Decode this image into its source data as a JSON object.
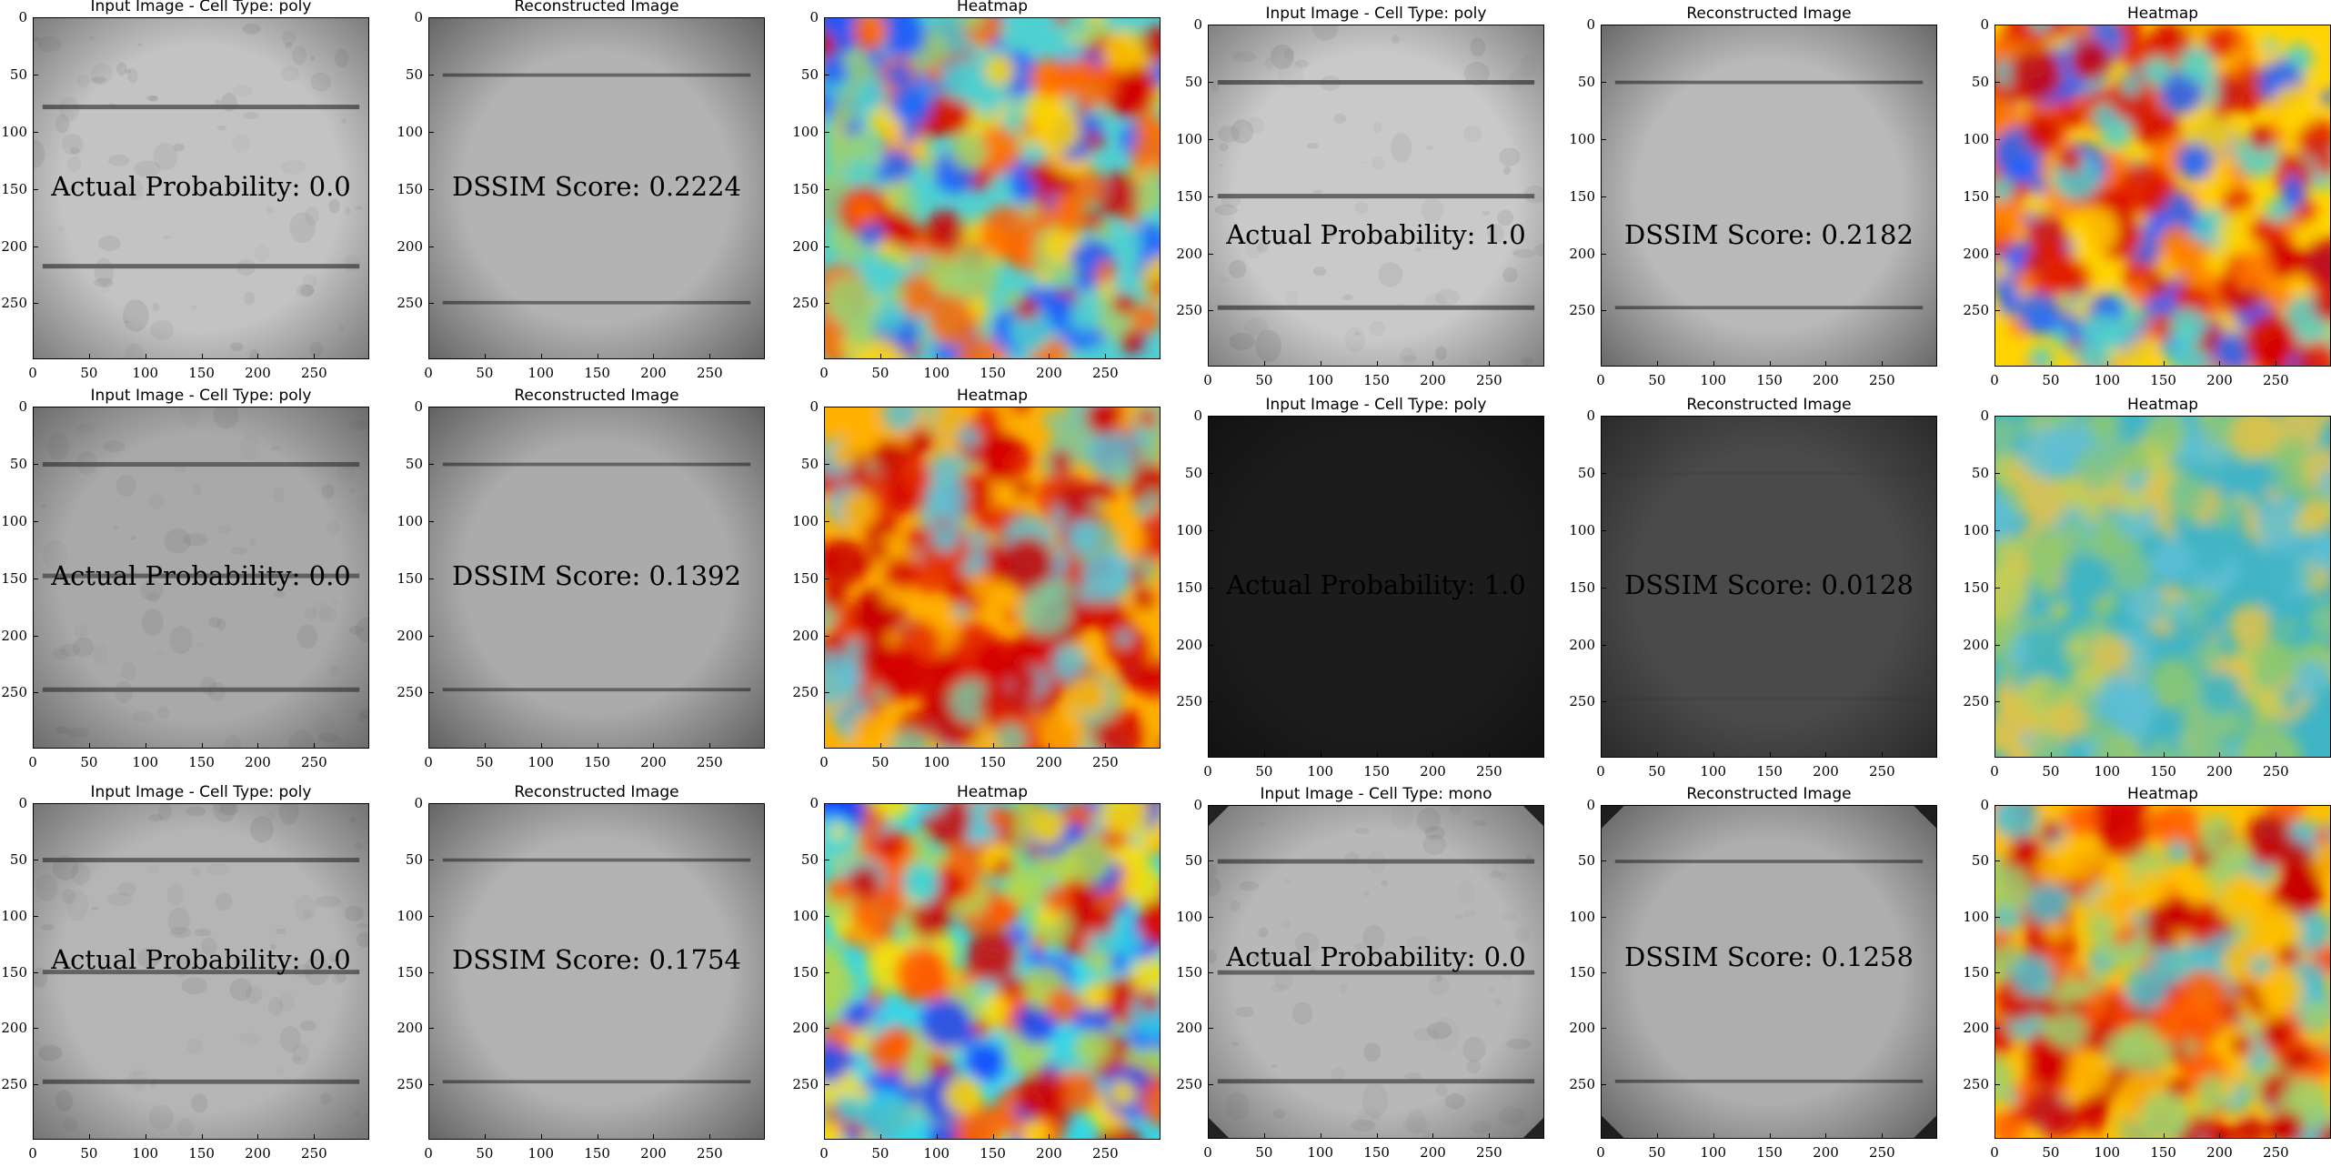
{
  "axis": {
    "ticks": [
      "0",
      "50",
      "100",
      "150",
      "200",
      "250"
    ],
    "tick_values": [
      0,
      50,
      100,
      150,
      200,
      250
    ],
    "max": 299
  },
  "rows": [
    [
      {
        "title": "Input Image - Cell Type: poly",
        "kind": "input",
        "annotation": "Actual Probability: 0.0",
        "bg": "#c3c3c3",
        "busbars": [
          78,
          218
        ],
        "dark_edges": false
      },
      {
        "title": "Reconstructed Image",
        "kind": "recon",
        "annotation": "DSSIM Score: 0.2224",
        "bg": "#b3b3b3",
        "busbars": [
          50,
          250
        ]
      },
      {
        "title": "Heatmap",
        "kind": "heatmap",
        "annotation": "",
        "palette": [
          "#d40000",
          "#ff6a00",
          "#ffd400",
          "#4fd0d0",
          "#1a5cff",
          "#9ed06e"
        ]
      }
    ],
    [
      {
        "title": "Input Image - Cell Type: poly",
        "kind": "input",
        "annotation": "Actual Probability: 1.0",
        "bg": "#c9c9c9",
        "busbars": [
          50,
          150,
          248
        ],
        "dark_edges": false
      },
      {
        "title": "Reconstructed Image",
        "kind": "recon",
        "annotation": "DSSIM Score: 0.2182",
        "bg": "#b9b9b9",
        "busbars": [
          50,
          248
        ]
      },
      {
        "title": "Heatmap",
        "kind": "heatmap",
        "annotation": "",
        "palette": [
          "#d40000",
          "#e01400",
          "#ff7a00",
          "#ffd400",
          "#4fd0d0",
          "#2060ff"
        ]
      }
    ],
    [
      {
        "title": "Input Image - Cell Type: poly",
        "kind": "input",
        "annotation": "Actual Probability: 0.0",
        "bg": "#a9a9a9",
        "busbars": [
          50,
          148,
          248
        ],
        "dark_edges": false
      },
      {
        "title": "Reconstructed Image",
        "kind": "recon",
        "annotation": "DSSIM Score: 0.1392",
        "bg": "#ababab",
        "busbars": [
          50,
          248
        ]
      },
      {
        "title": "Heatmap",
        "kind": "heatmap",
        "annotation": "",
        "palette": [
          "#d40000",
          "#c80000",
          "#e62a00",
          "#ffb000",
          "#7dc6a0",
          "#5fc0d6"
        ]
      }
    ],
    [
      {
        "title": "Input Image - Cell Type: poly",
        "kind": "input",
        "annotation": "Actual Probability: 1.0",
        "bg": "#1c1c1c",
        "busbars": [],
        "dark_edges": false
      },
      {
        "title": "Reconstructed Image",
        "kind": "recon",
        "annotation": "DSSIM Score: 0.0128",
        "bg": "#4a4a4a",
        "busbars": [
          50,
          248
        ]
      },
      {
        "title": "Heatmap",
        "kind": "heatmap",
        "annotation": "",
        "palette": [
          "#8ec86e",
          "#5fc0d6",
          "#c7cf52",
          "#3fb4c4",
          "#e0c24a",
          "#7fc48a"
        ]
      }
    ],
    [
      {
        "title": "Input Image - Cell Type: poly",
        "kind": "input",
        "annotation": "Actual Probability: 0.0",
        "bg": "#b5b5b5",
        "busbars": [
          50,
          150,
          248
        ],
        "dark_edges": false
      },
      {
        "title": "Reconstructed Image",
        "kind": "recon",
        "annotation": "DSSIM Score: 0.1754",
        "bg": "#b2b2b2",
        "busbars": [
          50,
          248
        ]
      },
      {
        "title": "Heatmap",
        "kind": "heatmap",
        "annotation": "",
        "palette": [
          "#d40000",
          "#ff5a00",
          "#ffe000",
          "#33d6e6",
          "#1440ff",
          "#b0d650"
        ]
      }
    ],
    [
      {
        "title": "Input Image - Cell Type: mono",
        "kind": "input",
        "annotation": "Actual Probability: 0.0",
        "bg": "#b8b8b8",
        "busbars": [
          50,
          150,
          248
        ],
        "dark_edges": true
      },
      {
        "title": "Reconstructed Image",
        "kind": "recon",
        "annotation": "DSSIM Score: 0.1258",
        "bg": "#aeaeae",
        "busbars": [
          50,
          248
        ],
        "dark_edges": true
      },
      {
        "title": "Heatmap",
        "kind": "heatmap",
        "annotation": "",
        "palette": [
          "#d40000",
          "#c80000",
          "#ff5a00",
          "#ffc000",
          "#4fc0d0",
          "#9ed06e"
        ]
      }
    ]
  ]
}
